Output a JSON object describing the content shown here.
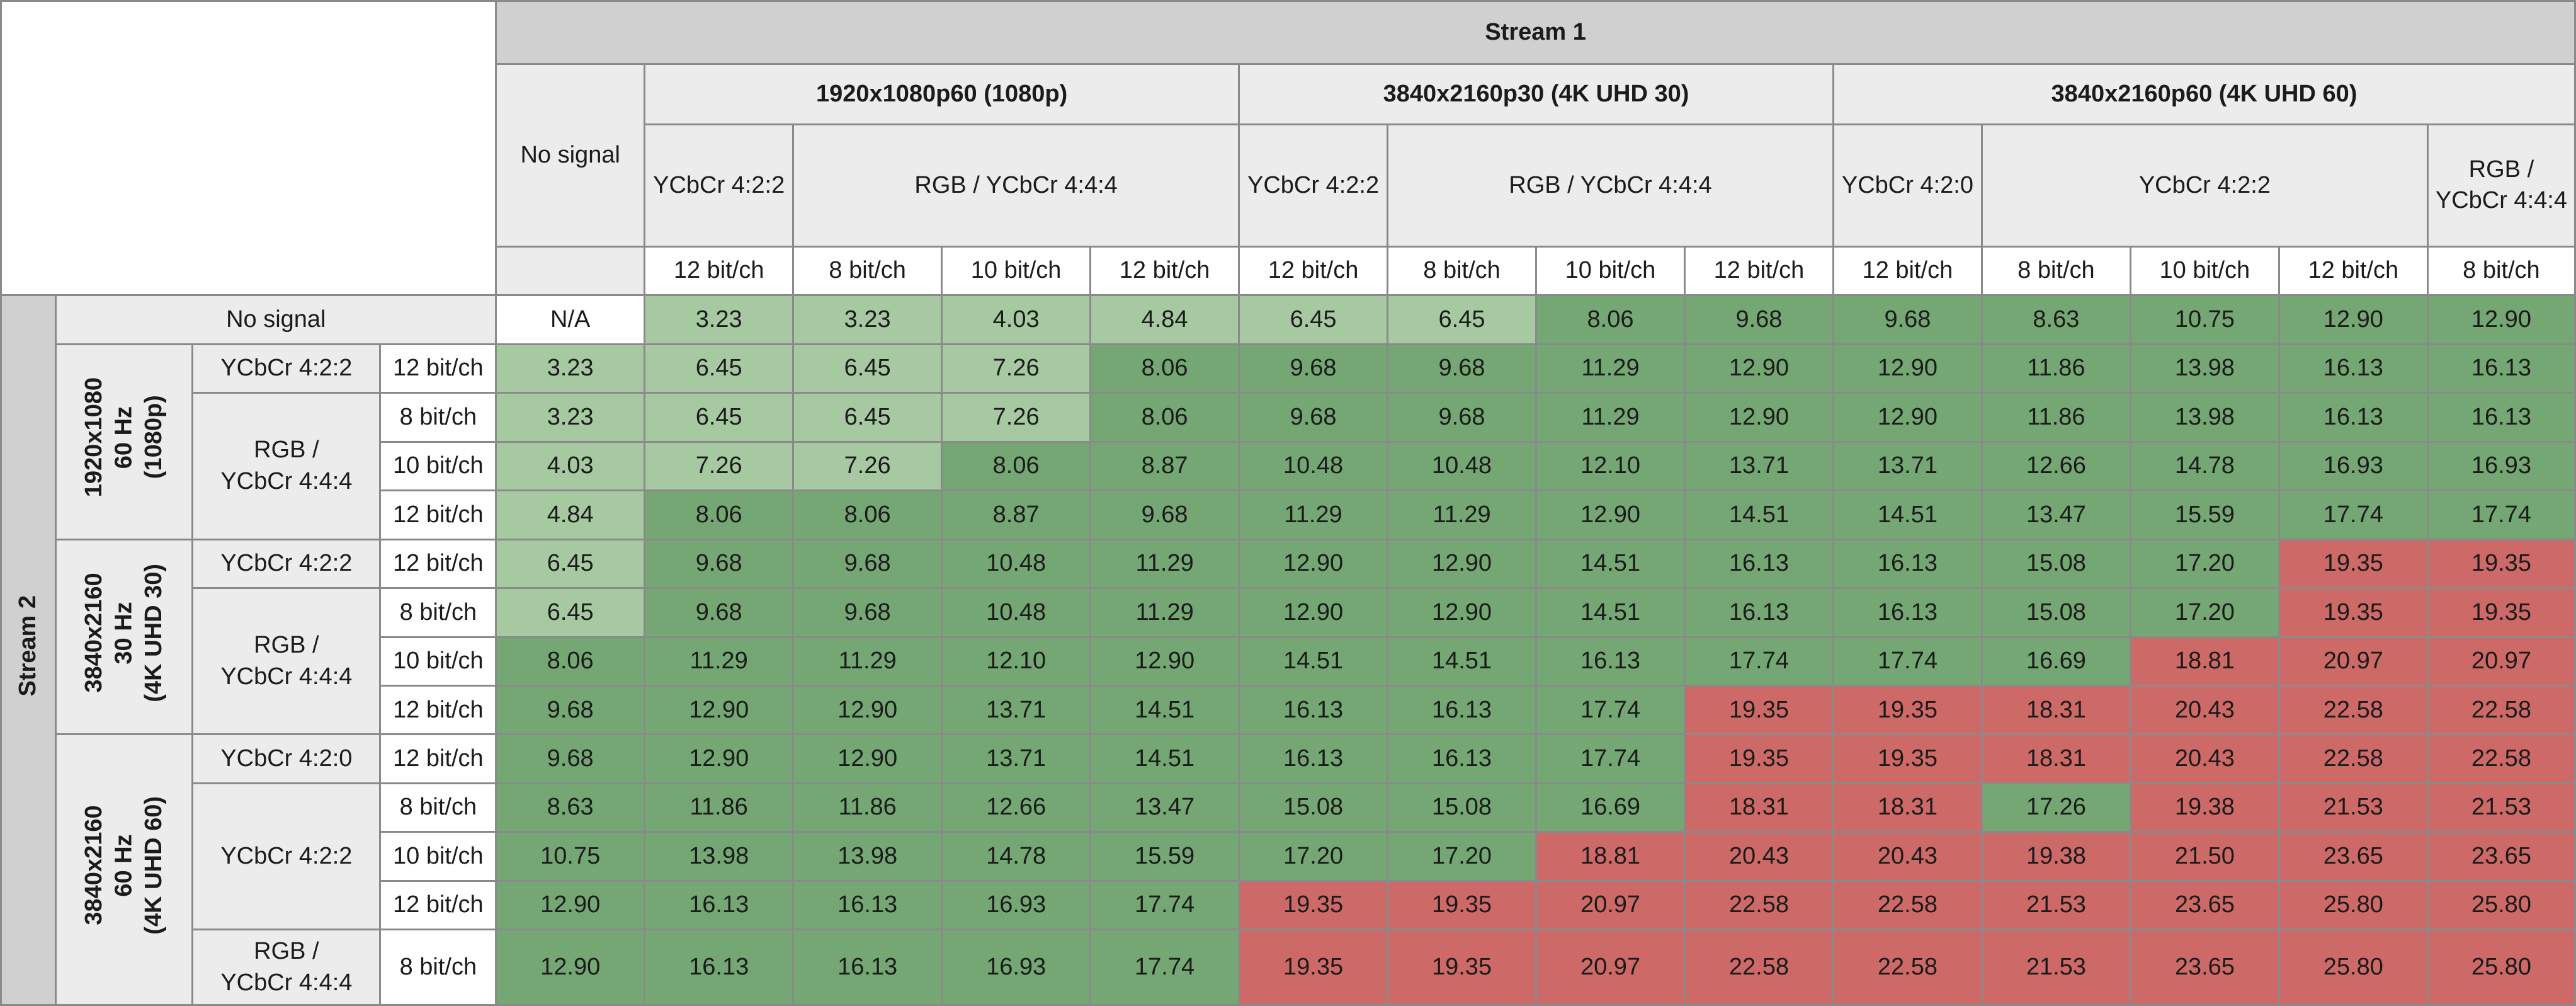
{
  "chart_data": {
    "type": "table",
    "header": {
      "stream1": "Stream 1",
      "stream2": "Stream 2",
      "no_signal": "No signal"
    },
    "col_groups": [
      {
        "label": "1920x1080p60 (1080p)",
        "formats": [
          {
            "label": "YCbCr 4:2:2",
            "depths": [
              "12 bit/ch"
            ]
          },
          {
            "label": "RGB / YCbCr 4:4:4",
            "depths": [
              "8 bit/ch",
              "10 bit/ch",
              "12 bit/ch"
            ]
          }
        ]
      },
      {
        "label": "3840x2160p30 (4K UHD 30)",
        "formats": [
          {
            "label": "YCbCr 4:2:2",
            "depths": [
              "12 bit/ch"
            ]
          },
          {
            "label": "RGB / YCbCr 4:4:4",
            "depths": [
              "8 bit/ch",
              "10 bit/ch",
              "12 bit/ch"
            ]
          }
        ]
      },
      {
        "label": "3840x2160p60 (4K UHD 60)",
        "formats": [
          {
            "label": "YCbCr 4:2:0",
            "depths": [
              "12 bit/ch"
            ]
          },
          {
            "label": "YCbCr 4:2:2",
            "depths": [
              "8 bit/ch",
              "10 bit/ch",
              "12 bit/ch"
            ]
          },
          {
            "label": "RGB /\nYCbCr 4:4:4",
            "depths": [
              "8 bit/ch"
            ]
          }
        ]
      }
    ],
    "row_groups": [
      {
        "label": "1920x1080\n60 Hz\n(1080p)",
        "formats": [
          {
            "label": "YCbCr 4:2:2",
            "depths": [
              "12 bit/ch"
            ]
          },
          {
            "label": "RGB /\nYCbCr 4:4:4",
            "depths": [
              "8 bit/ch",
              "10 bit/ch",
              "12 bit/ch"
            ]
          }
        ]
      },
      {
        "label": "3840x2160\n30 Hz\n(4K UHD 30)",
        "formats": [
          {
            "label": "YCbCr 4:2:2",
            "depths": [
              "12 bit/ch"
            ]
          },
          {
            "label": "RGB /\nYCbCr 4:4:4",
            "depths": [
              "8 bit/ch",
              "10 bit/ch",
              "12 bit/ch"
            ]
          }
        ]
      },
      {
        "label": "3840x2160\n60 Hz\n(4K UHD 60)",
        "formats": [
          {
            "label": "YCbCr 4:2:0",
            "depths": [
              "12 bit/ch"
            ]
          },
          {
            "label": "YCbCr 4:2:2",
            "depths": [
              "8 bit/ch",
              "10 bit/ch",
              "12 bit/ch"
            ]
          },
          {
            "label": "RGB /\nYCbCr 4:4:4",
            "depths": [
              "8 bit/ch"
            ]
          }
        ]
      }
    ],
    "colors": {
      "na": "#ffffff",
      "light_green": "#a6c9a1",
      "dark_green": "#74a773",
      "red": "#cd6a68"
    },
    "rows": [
      {
        "values": [
          "N/A",
          "3.23",
          "3.23",
          "4.03",
          "4.84",
          "6.45",
          "6.45",
          "8.06",
          "9.68",
          "9.68",
          "8.63",
          "10.75",
          "12.90",
          "12.90"
        ],
        "colors": [
          "na",
          "lg",
          "lg",
          "lg",
          "lg",
          "lg",
          "lg",
          "dg",
          "dg",
          "dg",
          "dg",
          "dg",
          "dg",
          "dg"
        ]
      },
      {
        "values": [
          "3.23",
          "6.45",
          "6.45",
          "7.26",
          "8.06",
          "9.68",
          "9.68",
          "11.29",
          "12.90",
          "12.90",
          "11.86",
          "13.98",
          "16.13",
          "16.13"
        ],
        "colors": [
          "lg",
          "lg",
          "lg",
          "lg",
          "dg",
          "dg",
          "dg",
          "dg",
          "dg",
          "dg",
          "dg",
          "dg",
          "dg",
          "dg"
        ]
      },
      {
        "values": [
          "3.23",
          "6.45",
          "6.45",
          "7.26",
          "8.06",
          "9.68",
          "9.68",
          "11.29",
          "12.90",
          "12.90",
          "11.86",
          "13.98",
          "16.13",
          "16.13"
        ],
        "colors": [
          "lg",
          "lg",
          "lg",
          "lg",
          "dg",
          "dg",
          "dg",
          "dg",
          "dg",
          "dg",
          "dg",
          "dg",
          "dg",
          "dg"
        ]
      },
      {
        "values": [
          "4.03",
          "7.26",
          "7.26",
          "8.06",
          "8.87",
          "10.48",
          "10.48",
          "12.10",
          "13.71",
          "13.71",
          "12.66",
          "14.78",
          "16.93",
          "16.93"
        ],
        "colors": [
          "lg",
          "lg",
          "lg",
          "dg",
          "dg",
          "dg",
          "dg",
          "dg",
          "dg",
          "dg",
          "dg",
          "dg",
          "dg",
          "dg"
        ]
      },
      {
        "values": [
          "4.84",
          "8.06",
          "8.06",
          "8.87",
          "9.68",
          "11.29",
          "11.29",
          "12.90",
          "14.51",
          "14.51",
          "13.47",
          "15.59",
          "17.74",
          "17.74"
        ],
        "colors": [
          "lg",
          "dg",
          "dg",
          "dg",
          "dg",
          "dg",
          "dg",
          "dg",
          "dg",
          "dg",
          "dg",
          "dg",
          "dg",
          "dg"
        ]
      },
      {
        "values": [
          "6.45",
          "9.68",
          "9.68",
          "10.48",
          "11.29",
          "12.90",
          "12.90",
          "14.51",
          "16.13",
          "16.13",
          "15.08",
          "17.20",
          "19.35",
          "19.35"
        ],
        "colors": [
          "lg",
          "dg",
          "dg",
          "dg",
          "dg",
          "dg",
          "dg",
          "dg",
          "dg",
          "dg",
          "dg",
          "dg",
          "rd",
          "rd"
        ]
      },
      {
        "values": [
          "6.45",
          "9.68",
          "9.68",
          "10.48",
          "11.29",
          "12.90",
          "12.90",
          "14.51",
          "16.13",
          "16.13",
          "15.08",
          "17.20",
          "19.35",
          "19.35"
        ],
        "colors": [
          "lg",
          "dg",
          "dg",
          "dg",
          "dg",
          "dg",
          "dg",
          "dg",
          "dg",
          "dg",
          "dg",
          "dg",
          "rd",
          "rd"
        ]
      },
      {
        "values": [
          "8.06",
          "11.29",
          "11.29",
          "12.10",
          "12.90",
          "14.51",
          "14.51",
          "16.13",
          "17.74",
          "17.74",
          "16.69",
          "18.81",
          "20.97",
          "20.97"
        ],
        "colors": [
          "dg",
          "dg",
          "dg",
          "dg",
          "dg",
          "dg",
          "dg",
          "dg",
          "dg",
          "dg",
          "dg",
          "rd",
          "rd",
          "rd"
        ]
      },
      {
        "values": [
          "9.68",
          "12.90",
          "12.90",
          "13.71",
          "14.51",
          "16.13",
          "16.13",
          "17.74",
          "19.35",
          "19.35",
          "18.31",
          "20.43",
          "22.58",
          "22.58"
        ],
        "colors": [
          "dg",
          "dg",
          "dg",
          "dg",
          "dg",
          "dg",
          "dg",
          "dg",
          "rd",
          "rd",
          "rd",
          "rd",
          "rd",
          "rd"
        ]
      },
      {
        "values": [
          "9.68",
          "12.90",
          "12.90",
          "13.71",
          "14.51",
          "16.13",
          "16.13",
          "17.74",
          "19.35",
          "19.35",
          "18.31",
          "20.43",
          "22.58",
          "22.58"
        ],
        "colors": [
          "dg",
          "dg",
          "dg",
          "dg",
          "dg",
          "dg",
          "dg",
          "dg",
          "rd",
          "rd",
          "rd",
          "rd",
          "rd",
          "rd"
        ]
      },
      {
        "values": [
          "8.63",
          "11.86",
          "11.86",
          "12.66",
          "13.47",
          "15.08",
          "15.08",
          "16.69",
          "18.31",
          "18.31",
          "17.26",
          "19.38",
          "21.53",
          "21.53"
        ],
        "colors": [
          "dg",
          "dg",
          "dg",
          "dg",
          "dg",
          "dg",
          "dg",
          "dg",
          "rd",
          "rd",
          "dg",
          "rd",
          "rd",
          "rd"
        ]
      },
      {
        "values": [
          "10.75",
          "13.98",
          "13.98",
          "14.78",
          "15.59",
          "17.20",
          "17.20",
          "18.81",
          "20.43",
          "20.43",
          "19.38",
          "21.50",
          "23.65",
          "23.65"
        ],
        "colors": [
          "dg",
          "dg",
          "dg",
          "dg",
          "dg",
          "dg",
          "dg",
          "rd",
          "rd",
          "rd",
          "rd",
          "rd",
          "rd",
          "rd"
        ]
      },
      {
        "values": [
          "12.90",
          "16.13",
          "16.13",
          "16.93",
          "17.74",
          "19.35",
          "19.35",
          "20.97",
          "22.58",
          "22.58",
          "21.53",
          "23.65",
          "25.80",
          "25.80"
        ],
        "colors": [
          "dg",
          "dg",
          "dg",
          "dg",
          "dg",
          "rd",
          "rd",
          "rd",
          "rd",
          "rd",
          "rd",
          "rd",
          "rd",
          "rd"
        ]
      },
      {
        "values": [
          "12.90",
          "16.13",
          "16.13",
          "16.93",
          "17.74",
          "19.35",
          "19.35",
          "20.97",
          "22.58",
          "22.58",
          "21.53",
          "23.65",
          "25.80",
          "25.80"
        ],
        "colors": [
          "dg",
          "dg",
          "dg",
          "dg",
          "dg",
          "rd",
          "rd",
          "rd",
          "rd",
          "rd",
          "rd",
          "rd",
          "rd",
          "rd"
        ]
      }
    ]
  }
}
